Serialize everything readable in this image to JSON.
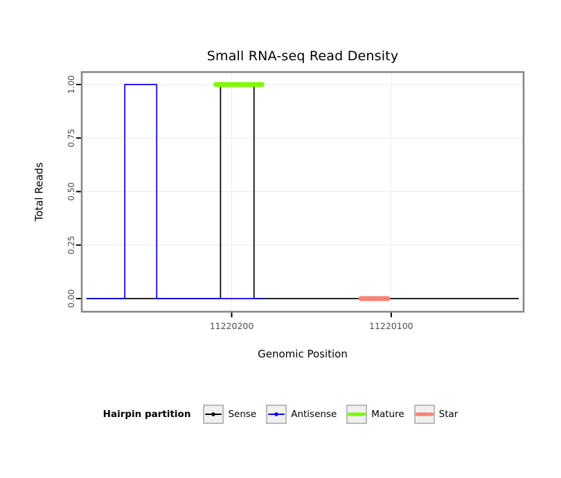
{
  "chart_data": {
    "type": "line",
    "title": "Small RNA-seq Read Density",
    "xlabel": "Genomic Position",
    "ylabel": "Total Reads",
    "x_reversed": true,
    "x_domain": [
      11220294,
      11220017
    ],
    "ylim": [
      0,
      1
    ],
    "y_ticks": [
      0,
      0.25,
      0.5,
      0.75,
      1
    ],
    "y_tick_labels": [
      "0.00",
      "0.25",
      "0.50",
      "0.75",
      "1.00"
    ],
    "x_ticks": [
      {
        "pos": 11220200,
        "label": "11220200"
      },
      {
        "pos": 11220100,
        "label": "11220100"
      }
    ],
    "grid": true,
    "panel": {
      "background": "#ffffff",
      "grid_color": "#ebebeb",
      "border_color": "#858585",
      "tick_color": "#000000",
      "tick_label_color": "#4d4d4d"
    },
    "series": [
      {
        "name": "Sense",
        "color": "#000000",
        "style": "step",
        "base": 0,
        "range": [
          11220291,
          11220020
        ],
        "pulses": [
          {
            "from": 11220207,
            "to": 11220186,
            "height": 1
          }
        ]
      },
      {
        "name": "Antisense",
        "color": "#0000ee",
        "style": "step",
        "base": 0,
        "range": [
          11220291,
          11220180
        ],
        "pulses": [
          {
            "from": 11220267,
            "to": 11220247,
            "height": 1
          }
        ]
      },
      {
        "name": "Mature",
        "color": "#7cfc00",
        "style": "thick-segment",
        "y": 1,
        "from": 11220210,
        "to": 11220181
      },
      {
        "name": "Star",
        "color": "#fa8072",
        "style": "thick-segment",
        "y": 0,
        "from": 11220119,
        "to": 11220102
      }
    ],
    "legend": {
      "title": "Hairpin partition",
      "position": "bottom",
      "items": [
        {
          "label": "Sense",
          "color": "#000000",
          "thick": false
        },
        {
          "label": "Antisense",
          "color": "#0000ee",
          "thick": false
        },
        {
          "label": "Mature",
          "color": "#7cfc00",
          "thick": true
        },
        {
          "label": "Star",
          "color": "#fa8072",
          "thick": true
        }
      ]
    }
  }
}
